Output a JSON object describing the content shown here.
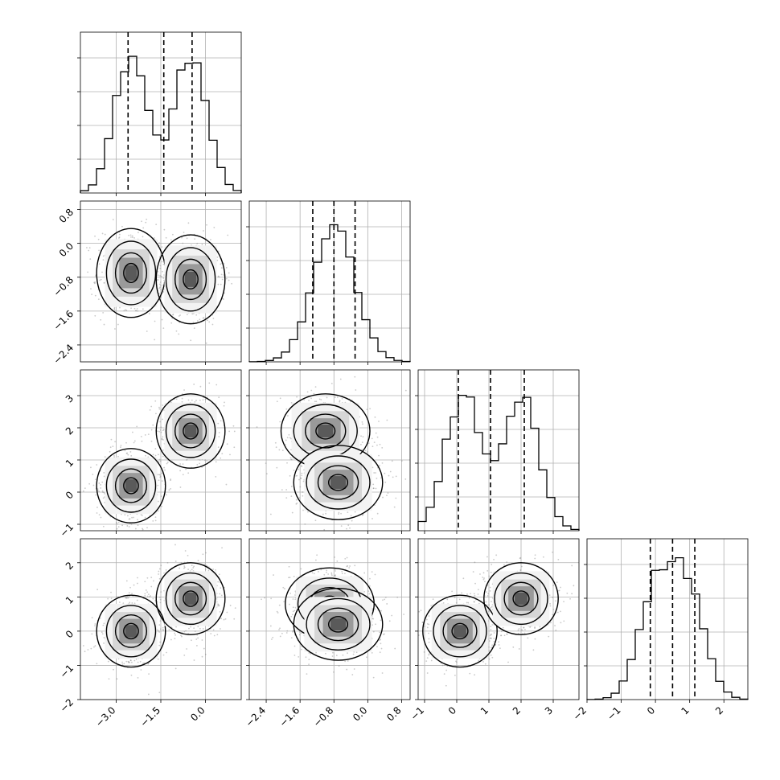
{
  "chart_data": {
    "type": "corner",
    "title": "",
    "parameters": [
      {
        "name": "",
        "range": [
          -4.2,
          1.2
        ],
        "ticks": [
          -3.0,
          -1.5,
          0.0
        ],
        "tick_labels": [
          "−3.0",
          "−1.5",
          "0.0"
        ],
        "modes": [
          {
            "mu": -2.5,
            "sigma": 0.55
          },
          {
            "mu": -0.5,
            "sigma": 0.55
          }
        ],
        "quantiles": [
          -2.6,
          -1.4,
          -0.45
        ]
      },
      {
        "name": "",
        "range": [
          -2.8,
          1.0
        ],
        "ticks": [
          -2.4,
          -1.6,
          -0.8,
          0.0,
          0.8
        ],
        "tick_labels": [
          "−2.4",
          "−1.6",
          "−0.8",
          "0.0",
          "0.8"
        ],
        "modes": [
          {
            "mu": -0.8,
            "sigma": 0.5
          }
        ],
        "quantiles": [
          -1.3,
          -0.8,
          -0.3
        ]
      },
      {
        "name": "",
        "range": [
          -1.2,
          3.8
        ],
        "ticks": [
          -1,
          0,
          1,
          2,
          3
        ],
        "tick_labels": [
          "−1",
          "0",
          "1",
          "2",
          "3"
        ],
        "modes": [
          {
            "mu": 0.2,
            "sigma": 0.55
          },
          {
            "mu": 2.0,
            "sigma": 0.55
          }
        ],
        "quantiles": [
          0.05,
          1.05,
          2.1
        ]
      },
      {
        "name": "",
        "range": [
          -2.0,
          2.7
        ],
        "ticks": [
          -2,
          -1,
          0,
          1,
          2
        ],
        "tick_labels": [
          "−2",
          "−1",
          "0",
          "1",
          "2"
        ],
        "modes": [
          {
            "mu": 0.0,
            "sigma": 0.5
          },
          {
            "mu": 0.95,
            "sigma": 0.5
          }
        ],
        "quantiles": [
          -0.15,
          0.5,
          1.15
        ]
      }
    ],
    "pair_modes": {
      "1-0": [
        [
          -2.5,
          -0.7
        ],
        [
          -0.5,
          -0.85
        ]
      ],
      "2-0": [
        [
          -2.5,
          0.2
        ],
        [
          -0.5,
          1.9
        ]
      ],
      "2-1": [
        [
          -1.0,
          1.9
        ],
        [
          -0.7,
          0.3
        ]
      ],
      "3-0": [
        [
          -2.5,
          0.0
        ],
        [
          -0.5,
          0.95
        ]
      ],
      "3-1": [
        [
          -0.9,
          0.8
        ],
        [
          -0.7,
          0.2
        ]
      ],
      "3-2": [
        [
          0.1,
          0.0
        ],
        [
          2.0,
          0.95
        ]
      ]
    },
    "grid": true,
    "legend": "none",
    "colors": {
      "ink": "#000000",
      "scatter": "#8a8a8a",
      "grid": "#b0b0b0"
    }
  }
}
